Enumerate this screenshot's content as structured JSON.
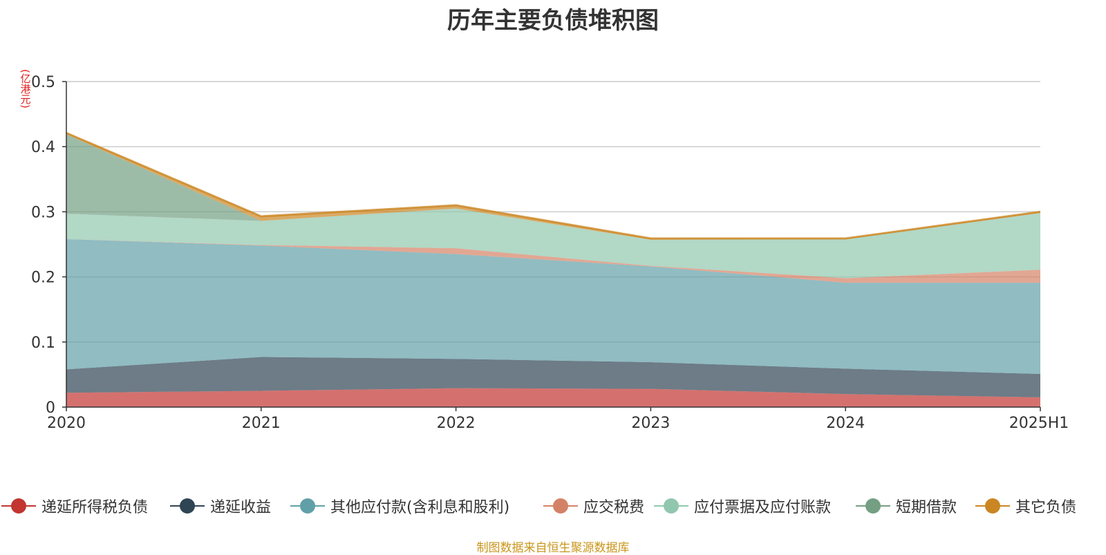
{
  "title": "历年主要负债堆积图",
  "y_unit": "(亿港元)",
  "source": "制图数据来自恒生聚源数据库",
  "chart_data": {
    "type": "area",
    "stacked": true,
    "title": "历年主要负债堆积图",
    "ylabel": "(亿港元)",
    "xlabel": "",
    "categories": [
      "2020",
      "2021",
      "2022",
      "2023",
      "2024",
      "2025H1"
    ],
    "ylim": [
      0,
      0.5
    ],
    "yticks": [
      0,
      0.1,
      0.2,
      0.3,
      0.4,
      0.5
    ],
    "ytick_labels": [
      "0",
      "0.1",
      "0.2",
      "0.3",
      "0.4",
      "0.5"
    ],
    "grid": true,
    "legend_position": "bottom",
    "series": [
      {
        "name": "递延所得税负债",
        "color": "#c23531",
        "values": [
          0.022,
          0.025,
          0.029,
          0.028,
          0.02,
          0.015
        ]
      },
      {
        "name": "递延收益",
        "color": "#2f4554",
        "values": [
          0.036,
          0.052,
          0.045,
          0.041,
          0.039,
          0.036
        ]
      },
      {
        "name": "其他应付款(含利息和股利)",
        "color": "#61a0a8",
        "values": [
          0.2,
          0.171,
          0.161,
          0.147,
          0.132,
          0.14
        ]
      },
      {
        "name": "应交税费",
        "color": "#d48265",
        "values": [
          0.0,
          0.001,
          0.009,
          0.001,
          0.007,
          0.02
        ]
      },
      {
        "name": "应付票据及应付账款",
        "color": "#91c7ae",
        "values": [
          0.039,
          0.037,
          0.061,
          0.04,
          0.06,
          0.087
        ]
      },
      {
        "name": "短期借款",
        "color": "#749f83",
        "values": [
          0.122,
          0.0,
          0.0,
          0.0,
          0.0,
          0.0
        ]
      },
      {
        "name": "其它负债",
        "color": "#ca8622",
        "values": [
          0.002,
          0.007,
          0.005,
          0.002,
          0.001,
          0.002
        ]
      }
    ]
  }
}
